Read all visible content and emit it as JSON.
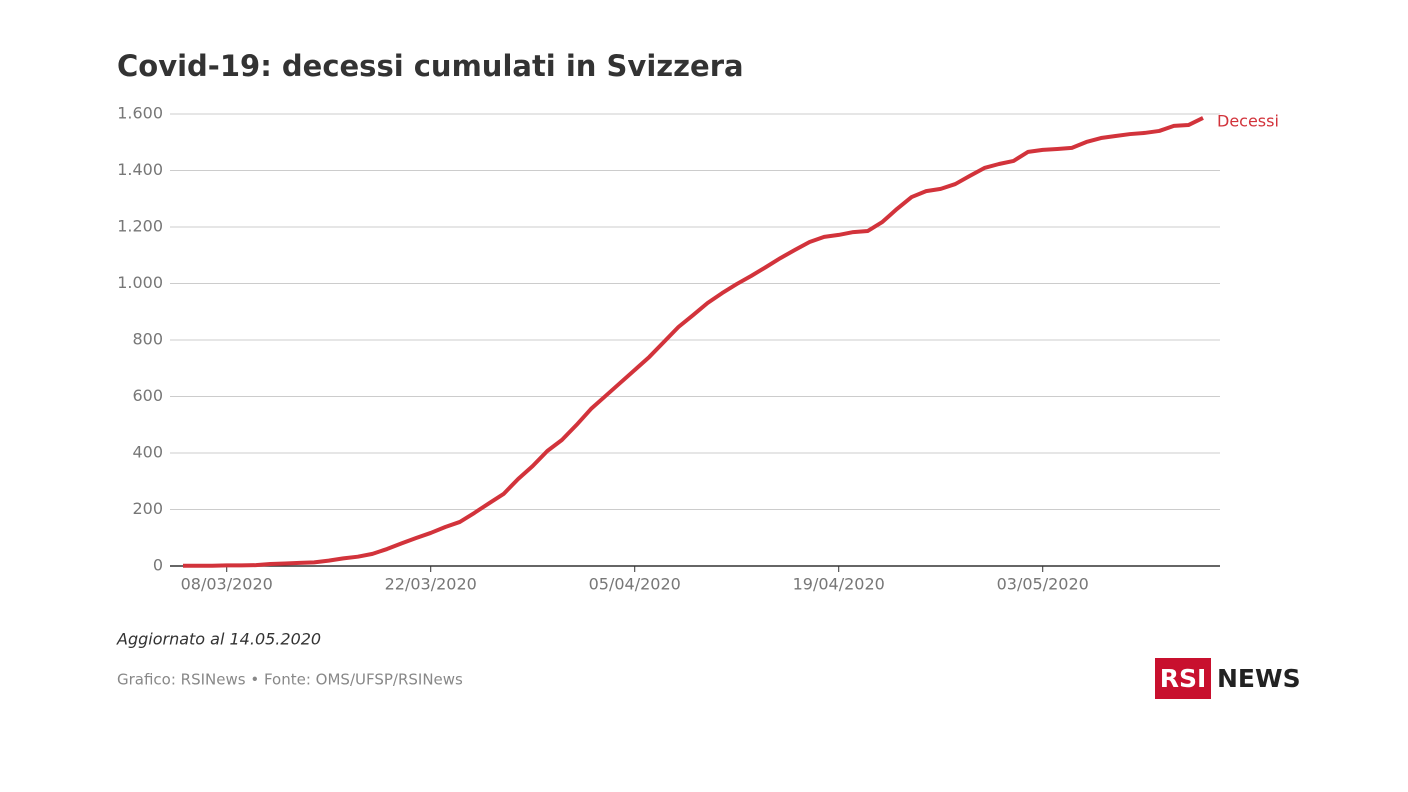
{
  "chart_data": {
    "type": "line",
    "title": "Covid-19: decessi cumulati in Svizzera",
    "x": [
      "05/03/2020",
      "06/03/2020",
      "07/03/2020",
      "08/03/2020",
      "09/03/2020",
      "10/03/2020",
      "11/03/2020",
      "12/03/2020",
      "13/03/2020",
      "14/03/2020",
      "15/03/2020",
      "16/03/2020",
      "17/03/2020",
      "18/03/2020",
      "19/03/2020",
      "20/03/2020",
      "21/03/2020",
      "22/03/2020",
      "23/03/2020",
      "24/03/2020",
      "25/03/2020",
      "26/03/2020",
      "27/03/2020",
      "28/03/2020",
      "29/03/2020",
      "30/03/2020",
      "31/03/2020",
      "01/04/2020",
      "02/04/2020",
      "03/04/2020",
      "04/04/2020",
      "05/04/2020",
      "06/04/2020",
      "07/04/2020",
      "08/04/2020",
      "09/04/2020",
      "10/04/2020",
      "11/04/2020",
      "12/04/2020",
      "13/04/2020",
      "14/04/2020",
      "15/04/2020",
      "16/04/2020",
      "17/04/2020",
      "18/04/2020",
      "19/04/2020",
      "20/04/2020",
      "21/04/2020",
      "22/04/2020",
      "23/04/2020",
      "24/04/2020",
      "25/04/2020",
      "26/04/2020",
      "27/04/2020",
      "28/04/2020",
      "29/04/2020",
      "30/04/2020",
      "01/05/2020",
      "02/05/2020",
      "03/05/2020",
      "04/05/2020",
      "05/05/2020",
      "06/05/2020",
      "07/05/2020",
      "08/05/2020",
      "09/05/2020",
      "10/05/2020",
      "11/05/2020",
      "12/05/2020",
      "13/05/2020",
      "14/05/2020"
    ],
    "series": [
      {
        "name": "Decessi",
        "color": "#d2333b",
        "values": [
          1,
          1,
          1,
          2,
          2,
          3,
          7,
          9,
          11,
          13,
          19,
          27,
          33,
          43,
          60,
          80,
          99,
          117,
          138,
          156,
          188,
          222,
          255,
          308,
          354,
          407,
          446,
          499,
          556,
          602,
          648,
          694,
          740,
          793,
          846,
          888,
          931,
          966,
          998,
          1027,
          1058,
          1090,
          1119,
          1147,
          1165,
          1172,
          1182,
          1186,
          1218,
          1264,
          1306,
          1327,
          1335,
          1352,
          1381,
          1409,
          1423,
          1434,
          1466,
          1473,
          1476,
          1480,
          1501,
          1515,
          1522,
          1529,
          1533,
          1540,
          1558,
          1561,
          1586
        ]
      }
    ],
    "xticks": [
      "08/03/2020",
      "22/03/2020",
      "05/04/2020",
      "19/04/2020",
      "03/05/2020"
    ],
    "ylim": [
      0,
      1600
    ],
    "yticks": [
      0,
      200,
      400,
      600,
      800,
      {
        "value": 1000,
        "label": "1.000"
      },
      {
        "value": 1200,
        "label": "1.200"
      },
      {
        "value": 1400,
        "label": "1.400"
      },
      {
        "value": 1600,
        "label": "1.600"
      }
    ],
    "grid": true,
    "note": "Aggiornato al 14.05.2020",
    "source": "Grafico: RSINews • Fonte: OMS/UFSP/RSINews",
    "logo": {
      "left": "RSI",
      "right": "NEWS"
    }
  }
}
